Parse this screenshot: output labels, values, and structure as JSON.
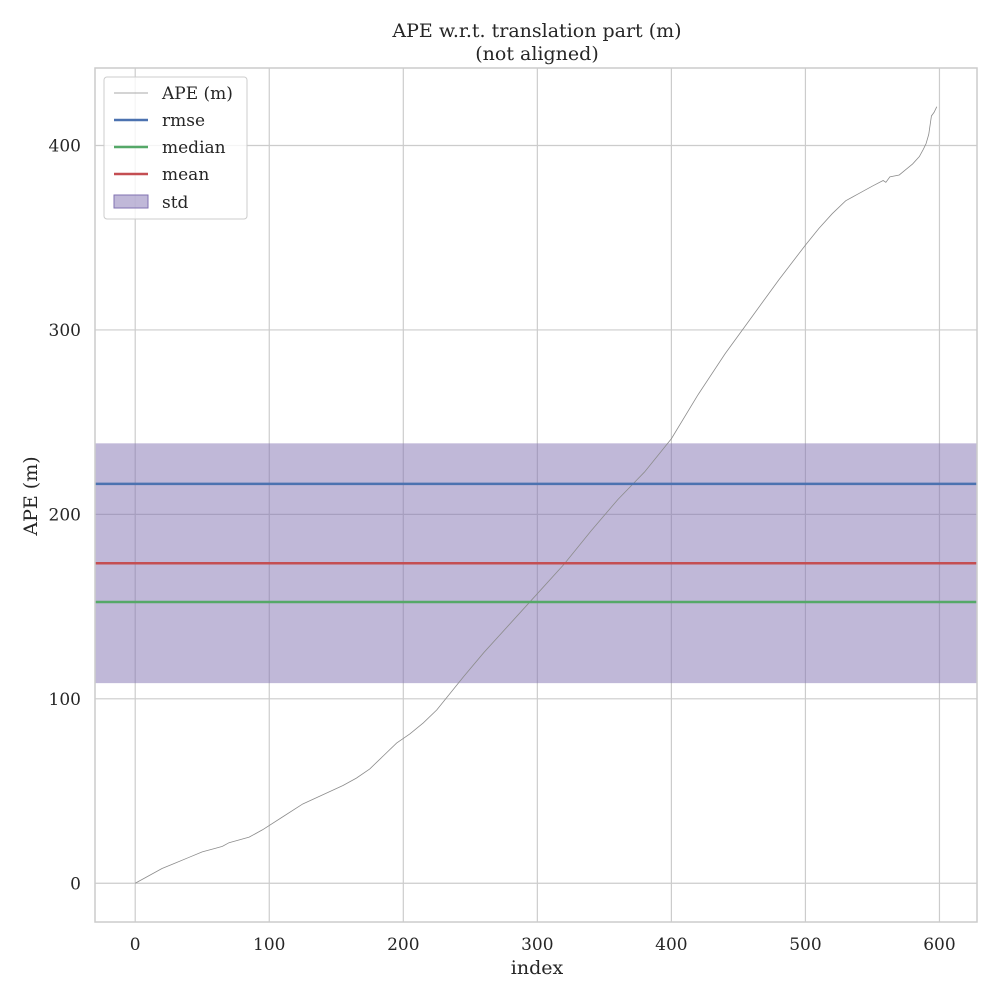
{
  "chart_data": {
    "type": "line",
    "title": "APE w.r.t. translation part (m)",
    "subtitle": "(not aligned)",
    "xlabel": "index",
    "ylabel": "APE (m)",
    "xlim": [
      -30,
      628
    ],
    "ylim": [
      -21,
      442
    ],
    "xticks": [
      0,
      100,
      200,
      300,
      400,
      500,
      600
    ],
    "yticks": [
      0,
      100,
      200,
      300,
      400
    ],
    "grid": true,
    "legend_position": "top-left",
    "colors": {
      "ape": "#8c8c8c",
      "rmse": "#4c72b0",
      "median": "#55a868",
      "mean": "#c44e52",
      "std": "#8172b2",
      "grid": "#cccccc",
      "frame": "#cccccc"
    },
    "series": [
      {
        "name": "APE (m)",
        "x": [
          0,
          10,
          20,
          30,
          40,
          50,
          60,
          65,
          70,
          75,
          85,
          95,
          110,
          125,
          140,
          155,
          165,
          175,
          185,
          195,
          205,
          215,
          225,
          235,
          245,
          260,
          280,
          300,
          320,
          340,
          360,
          380,
          400,
          420,
          440,
          460,
          480,
          500,
          510,
          520,
          530,
          535,
          540,
          550,
          558,
          560,
          563,
          570,
          575,
          580,
          585,
          588,
          590,
          592,
          594,
          596,
          598
        ],
        "y": [
          0,
          4,
          8,
          11,
          14,
          17,
          19,
          20,
          22,
          23,
          25,
          29,
          36,
          43,
          48,
          53,
          57,
          62,
          69,
          76,
          81,
          87,
          94,
          103,
          112,
          125,
          141,
          157,
          173,
          191,
          208,
          223,
          241,
          265,
          287,
          307,
          327,
          346,
          355,
          363,
          370,
          372,
          374,
          378,
          381,
          380,
          383,
          384,
          387,
          390,
          394,
          398,
          401,
          406,
          416,
          418,
          421
        ]
      }
    ],
    "reference_lines": [
      {
        "name": "rmse",
        "value": 216.5
      },
      {
        "name": "median",
        "value": 152.5
      },
      {
        "name": "mean",
        "value": 173.5
      }
    ],
    "std_band": {
      "name": "std",
      "lower": 108.5,
      "upper": 238.5
    },
    "legend_entries": [
      "APE (m)",
      "rmse",
      "median",
      "mean",
      "std"
    ]
  }
}
